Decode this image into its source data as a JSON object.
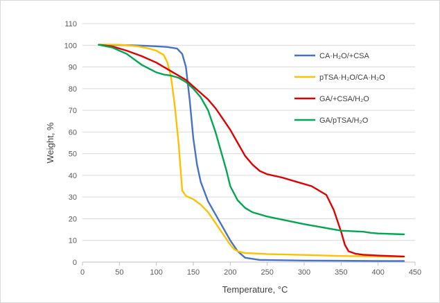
{
  "chart_data": {
    "type": "line",
    "title": "",
    "xlabel": "Temperature, °C",
    "ylabel": "Weight, %",
    "xlim": [
      0,
      450
    ],
    "ylim": [
      0,
      110
    ],
    "xticks": [
      0,
      50,
      100,
      150,
      200,
      250,
      300,
      350,
      400,
      450
    ],
    "yticks": [
      0,
      10,
      20,
      30,
      40,
      50,
      60,
      70,
      80,
      90,
      100,
      110
    ],
    "grid": "horizontal",
    "legend_position": "top-right",
    "series": [
      {
        "name": "CA·H₂O/+CSA",
        "color": "#4472c4",
        "x": [
          22,
          50,
          75,
          100,
          115,
          128,
          135,
          140,
          145,
          150,
          155,
          160,
          170,
          180,
          190,
          200,
          210,
          220,
          240,
          300,
          350,
          400,
          435
        ],
        "y": [
          100.2,
          100.1,
          99.9,
          99.5,
          99.2,
          98.5,
          96,
          90,
          75,
          57,
          45,
          37,
          28,
          22,
          16,
          10,
          5,
          2,
          1,
          0.7,
          0.6,
          0.5,
          0.5
        ]
      },
      {
        "name": "pTSA·H₂O/CA·H₂O",
        "color": "#ffc000",
        "x": [
          22,
          50,
          75,
          90,
          100,
          110,
          115,
          120,
          125,
          130,
          135,
          140,
          150,
          160,
          170,
          180,
          190,
          200,
          205,
          210,
          220,
          250,
          300,
          350,
          400,
          435
        ],
        "y": [
          100.3,
          100.2,
          99.5,
          98.5,
          97.5,
          95.5,
          92,
          85,
          72,
          55,
          33,
          30.5,
          29,
          26.5,
          23,
          18,
          13,
          8,
          6,
          5,
          4.2,
          3.7,
          3.3,
          2.8,
          2.6,
          2.5
        ]
      },
      {
        "name": "GA/+CSA/H₂O",
        "color": "#e00000",
        "x": [
          22,
          40,
          60,
          80,
          100,
          120,
          140,
          150,
          160,
          170,
          180,
          190,
          200,
          210,
          220,
          230,
          240,
          250,
          270,
          290,
          310,
          330,
          340,
          350,
          355,
          360,
          370,
          380,
          400,
          435
        ],
        "y": [
          100.2,
          99.5,
          97.5,
          95,
          92,
          88,
          84,
          81,
          78,
          75,
          71,
          66,
          61,
          55,
          49,
          45,
          42,
          40.5,
          39,
          37,
          35,
          31,
          24,
          14,
          8,
          5,
          3.8,
          3.4,
          3.0,
          2.6
        ]
      },
      {
        "name": "GA/pTSA/H₂O",
        "color": "#00a651",
        "x": [
          22,
          40,
          60,
          80,
          100,
          110,
          120,
          130,
          140,
          150,
          160,
          170,
          180,
          190,
          195,
          200,
          210,
          220,
          230,
          250,
          300,
          350,
          380,
          390,
          400,
          435
        ],
        "y": [
          100.2,
          99,
          96,
          91,
          87.5,
          86.5,
          86,
          85,
          83,
          80,
          76,
          70,
          60,
          48,
          42,
          35,
          28.5,
          25,
          23,
          21,
          17.5,
          14.5,
          14,
          13.5,
          13.2,
          12.8
        ]
      }
    ]
  }
}
